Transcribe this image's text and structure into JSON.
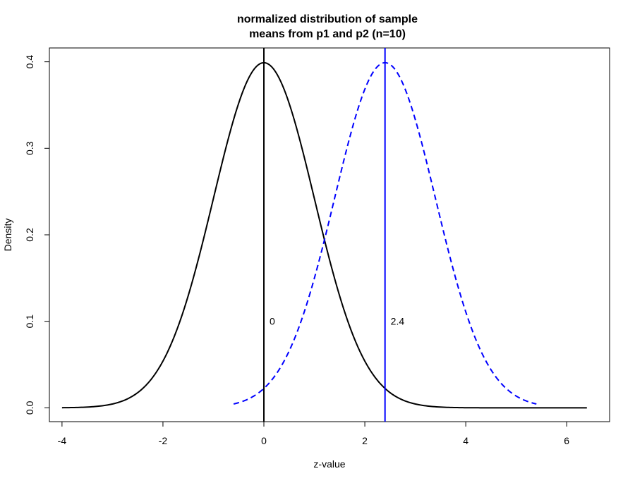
{
  "chart_data": {
    "type": "line",
    "title_line1": "normalized distribution of sample",
    "title_line2": "means from p1 and p2 (n=10)",
    "xlabel": "z-value",
    "ylabel": "Density",
    "xlim": [
      -4.25,
      6.85
    ],
    "ylim": [
      -0.016,
      0.416
    ],
    "x_ticks": [
      -4,
      -2,
      0,
      2,
      4,
      6
    ],
    "y_ticks": [
      0.0,
      0.1,
      0.2,
      0.3,
      0.4
    ],
    "grid": false,
    "series": [
      {
        "color": "#000000",
        "dash": "solid",
        "mean": 0,
        "sd": 1,
        "x_from": -4,
        "x_to": 6.4
      },
      {
        "color": "#0000ff",
        "dash": "dashed",
        "mean": 2.4,
        "sd": 1,
        "x_from": -0.6,
        "x_to": 5.4
      }
    ],
    "vlines": [
      {
        "x": 0,
        "color": "#000000",
        "label": "0",
        "label_y": 0.1
      },
      {
        "x": 2.4,
        "color": "#0000ff",
        "label": "2.4",
        "label_y": 0.1
      }
    ]
  }
}
